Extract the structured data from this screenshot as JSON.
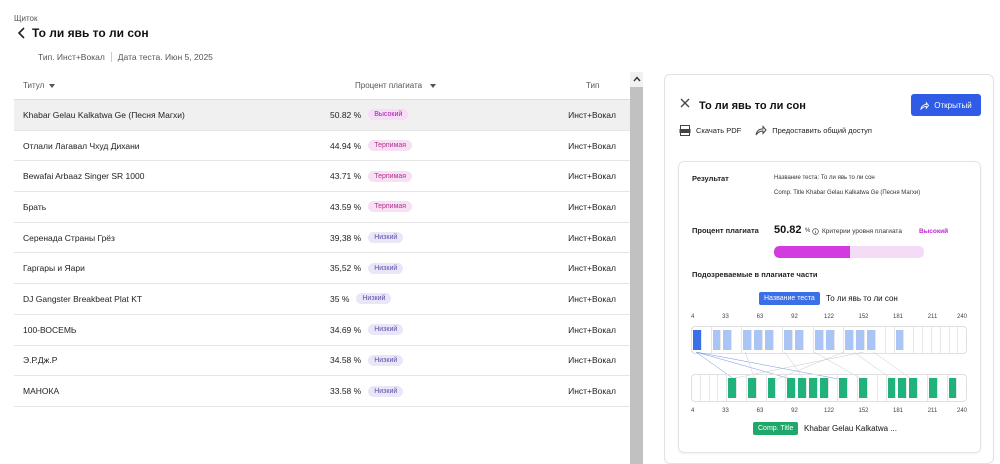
{
  "breadcrumb": "Щиток",
  "page": {
    "title": "То ли явь то ли сон",
    "type_meta": "Тип. Инст+Вокал",
    "date_meta": "Дата теста. Июн 5, 2025"
  },
  "table": {
    "headers": {
      "title": "Титул",
      "percent": "Процент плагиата",
      "type": "Тип"
    },
    "rows": [
      {
        "title": "Khabar Gelau Kalkatwa Ge (Песня Магхи)",
        "percent": "50.82 %",
        "level": "Высокий",
        "level_kind": "high",
        "type": "Инст+Вокал"
      },
      {
        "title": "Отлали Лагавал Чхуд Дихани",
        "percent": "44.94 %",
        "level": "Терпимая",
        "level_kind": "tol",
        "type": "Инст+Вокал"
      },
      {
        "title": "Bewafai Arbaaz Singer SR 1000",
        "percent": "43.71 %",
        "level": "Терпимая",
        "level_kind": "tol",
        "type": "Инст+Вокал"
      },
      {
        "title": "Брать",
        "percent": "43.59 %",
        "level": "Терпимая",
        "level_kind": "tol",
        "type": "Инст+Вокал"
      },
      {
        "title": "Серенада Страны Грёз",
        "percent": "39,38 %",
        "level": "Низкий",
        "level_kind": "low",
        "type": "Инст+Вокал"
      },
      {
        "title": "Гаргары и Яари",
        "percent": "35,52 %",
        "level": "Низкий",
        "level_kind": "low",
        "type": "Инст+Вокал"
      },
      {
        "title": "DJ Gangster Breakbeat Plat KT",
        "percent": "35 %",
        "level": "Низкий",
        "level_kind": "low",
        "type": "Инст+Вокал"
      },
      {
        "title": "100-ВОСЕМЬ",
        "percent": "34.69 %",
        "level": "Низкий",
        "level_kind": "low",
        "type": "Инст+Вокал"
      },
      {
        "title": "Э.Р.Дж.Р",
        "percent": "34.58 %",
        "level": "Низкий",
        "level_kind": "low",
        "type": "Инст+Вокал"
      },
      {
        "title": "МАНОКА",
        "percent": "33.58 %",
        "level": "Низкий",
        "level_kind": "low",
        "type": "Инст+Вокал"
      }
    ]
  },
  "panel": {
    "title": "То ли явь то ли сон",
    "open_button": "Открытый",
    "download_pdf": "Скачать PDF",
    "share": "Предоставить общий доступ",
    "result_label": "Результат",
    "result_test_line": "Название теста: То ли явь то ли сон",
    "result_comp_line": "Comp. Title  Khabar Gelau Kalkatwa Ge (Песня Магхи)",
    "percent_label": "Процент плагиата",
    "percent_value": "50.82",
    "percent_unit": "%",
    "criteria_label": "Критерии уровня плагиата",
    "criteria_value": "Высокий",
    "percent_fraction": 0.5082,
    "suspected_label": "Подозреваемые в плагиате части",
    "test_tag": "Название теста",
    "test_name": "То ли явь то ли сон",
    "comp_tag": "Comp. Title",
    "comp_name": "Khabar Gelau Kalkatwa ...",
    "ticks": [
      "4",
      "33",
      "63",
      "92",
      "122",
      "152",
      "181",
      "211",
      "240"
    ]
  },
  "colors": {
    "accent": "#2f5be6",
    "high": "#c026d3",
    "test_segment": "#a9c4f5",
    "test_segment_active": "#3b6fe8",
    "comp_segment": "#1fb27a"
  },
  "icons": [
    "chevron-left-icon",
    "caret-down-icon",
    "close-icon",
    "share-arrow-icon",
    "pdf-icon",
    "info-icon",
    "chevron-up-icon"
  ]
}
